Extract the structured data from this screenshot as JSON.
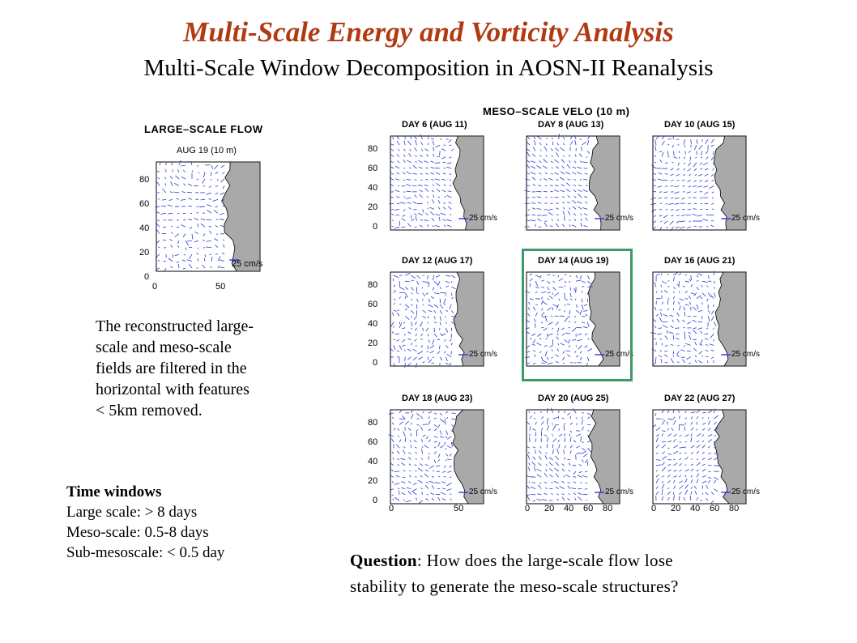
{
  "title": "Multi-Scale Energy and Vorticity Analysis",
  "subtitle": "Multi-Scale Window Decomposition in AOSN-II Reanalysis",
  "large_scale": {
    "title": "LARGE–SCALE  FLOW",
    "date": "AUG 19 (10 m)",
    "y_ticks": [
      "80",
      "60",
      "40",
      "20",
      "0"
    ],
    "x_ticks": [
      "0",
      "50"
    ],
    "scale_label": "25 cm/s"
  },
  "meso_scale": {
    "title": "MESO–SCALE  VELO  (10 m)",
    "panels": [
      {
        "label": "DAY 6  (AUG 11)"
      },
      {
        "label": "DAY 8  (AUG 13)"
      },
      {
        "label": "DAY 10  (AUG 15)"
      },
      {
        "label": "DAY 12  (AUG 17)"
      },
      {
        "label": "DAY 14  (AUG 19)",
        "highlighted": true
      },
      {
        "label": "DAY 16  (AUG 21)"
      },
      {
        "label": "DAY 18  (AUG 23)"
      },
      {
        "label": "DAY 20  (AUG 25)"
      },
      {
        "label": "DAY 22  (AUG 27)"
      }
    ],
    "y_ticks": [
      "80",
      "60",
      "40",
      "20",
      "0"
    ],
    "x_ticks_first": [
      "0",
      "50"
    ],
    "x_ticks_other": [
      "0",
      "20",
      "40",
      "60",
      "80"
    ],
    "scale_label": "25 cm/s"
  },
  "note": {
    "lines": [
      "The reconstructed large-",
      "scale and meso-scale",
      "fields are filtered in the",
      "horizontal with features",
      "< 5km removed."
    ]
  },
  "time_windows": {
    "heading": "Time windows",
    "large": "Large scale: > 8 days",
    "meso": "Meso-scale: 0.5-8 days",
    "sub": "Sub-mesoscale: < 0.5 day"
  },
  "question": {
    "label": "Question",
    "text_line1": ": How does the large-scale flow lose",
    "text_line2": "stability to generate the meso-scale structures?"
  },
  "colors": {
    "title": "#b03a12",
    "vectors": "#2a3bd6",
    "land": "#a9a9a9",
    "highlight": "#3a9a6a"
  }
}
